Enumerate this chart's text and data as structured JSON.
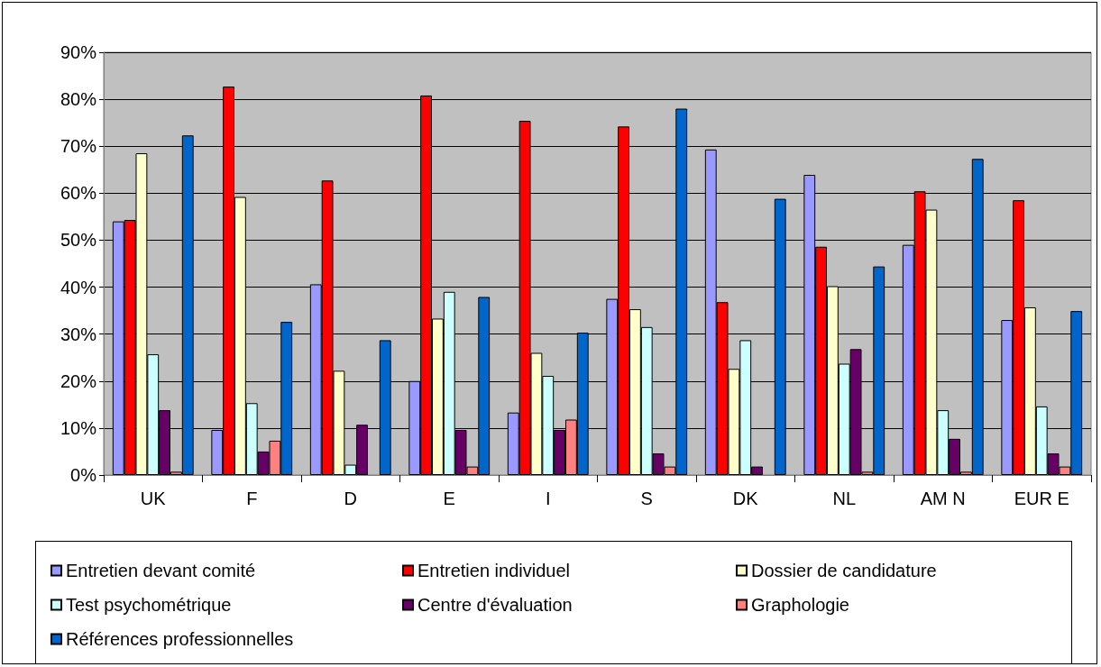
{
  "chart_data": {
    "type": "bar",
    "categories": [
      "UK",
      "F",
      "D",
      "E",
      "I",
      "S",
      "DK",
      "NL",
      "AM N",
      "EUR E"
    ],
    "series": [
      {
        "name": "Entretien devant comité",
        "color": "#9999ff",
        "values": [
          54,
          9.6,
          40.6,
          20,
          13.3,
          37.5,
          69.3,
          63.9,
          49,
          33
        ]
      },
      {
        "name": "Entretien individuel",
        "color": "#ff0000",
        "values": [
          54.3,
          82.7,
          62.7,
          80.8,
          75.4,
          74.2,
          36.8,
          48.6,
          60.4,
          58.5
        ]
      },
      {
        "name": "Dossier de candidature",
        "color": "#ffffcc",
        "values": [
          68.5,
          59.2,
          22.2,
          33.3,
          26,
          35.3,
          22.6,
          40.2,
          56.5,
          35.7
        ]
      },
      {
        "name": "Test psychométrique",
        "color": "#ccffff",
        "values": [
          25.7,
          15.3,
          2.2,
          39,
          21.1,
          31.5,
          28.7,
          23.7,
          13.8,
          14.6
        ]
      },
      {
        "name": "Centre d'évaluation",
        "color": "#660066",
        "values": [
          13.8,
          5,
          10.7,
          9.6,
          9.6,
          4.6,
          1.8,
          26.8,
          7.7,
          4.6
        ]
      },
      {
        "name": "Graphologie",
        "color": "#ff8080",
        "values": [
          0.7,
          7.3,
          null,
          1.8,
          11.8,
          1.8,
          null,
          0.7,
          0.7,
          1.8
        ]
      },
      {
        "name": "Références professionnelles",
        "color": "#0066cc",
        "values": [
          72.3,
          32.6,
          28.7,
          37.9,
          30.3,
          78,
          58.8,
          44.4,
          67.3,
          34.9
        ]
      }
    ],
    "ylim": [
      0,
      90
    ],
    "yticks": [
      {
        "value": 0,
        "label": "0%"
      },
      {
        "value": 10,
        "label": "10%"
      },
      {
        "value": 20,
        "label": "20%"
      },
      {
        "value": 30,
        "label": "30%"
      },
      {
        "value": 40,
        "label": "40%"
      },
      {
        "value": 50,
        "label": "50%"
      },
      {
        "value": 60,
        "label": "60%"
      },
      {
        "value": 70,
        "label": "70%"
      },
      {
        "value": 80,
        "label": "80%"
      },
      {
        "value": 90,
        "label": "90%"
      }
    ],
    "grid": "y",
    "legend": "bottom"
  }
}
